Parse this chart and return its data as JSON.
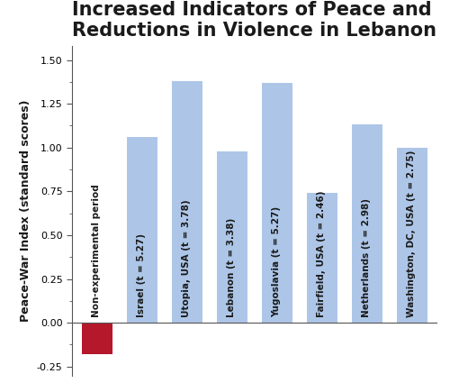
{
  "title": "Increased Indicators of Peace and\nReductions in Violence in Lebanon",
  "ylabel": "Peace-War Index (standard scores)",
  "categories": [
    "Non-experimental period",
    "Israel (t = 5.27)",
    "Utopia, USA (t = 3.78)",
    "Lebanon (t = 3.38)",
    "Yugoslavia (t = 5.27)",
    "Fairfield, USA (t = 2.46)",
    "Netherlands (t = 2.98)",
    "Washington, DC, USA (t = 2.75)"
  ],
  "values": [
    -0.18,
    1.06,
    1.38,
    0.98,
    1.37,
    0.74,
    1.13,
    1.0
  ],
  "bar_colors": [
    "#b5172b",
    "#adc6e8",
    "#adc6e8",
    "#adc6e8",
    "#adc6e8",
    "#adc6e8",
    "#adc6e8",
    "#adc6e8"
  ],
  "ylim": [
    -0.3,
    1.58
  ],
  "yticks": [
    -0.25,
    0.0,
    0.25,
    0.5,
    0.75,
    1.0,
    1.25,
    1.5
  ],
  "ytick_labels": [
    "-0.25",
    "0.00",
    "0.25",
    "0.50",
    "0.75",
    "1.00",
    "1.25",
    "1.50"
  ],
  "background_color": "#ffffff",
  "title_fontsize": 15,
  "ylabel_fontsize": 9,
  "tick_label_fontsize": 8,
  "bar_label_fontsize": 7.5,
  "bar_width": 0.68
}
